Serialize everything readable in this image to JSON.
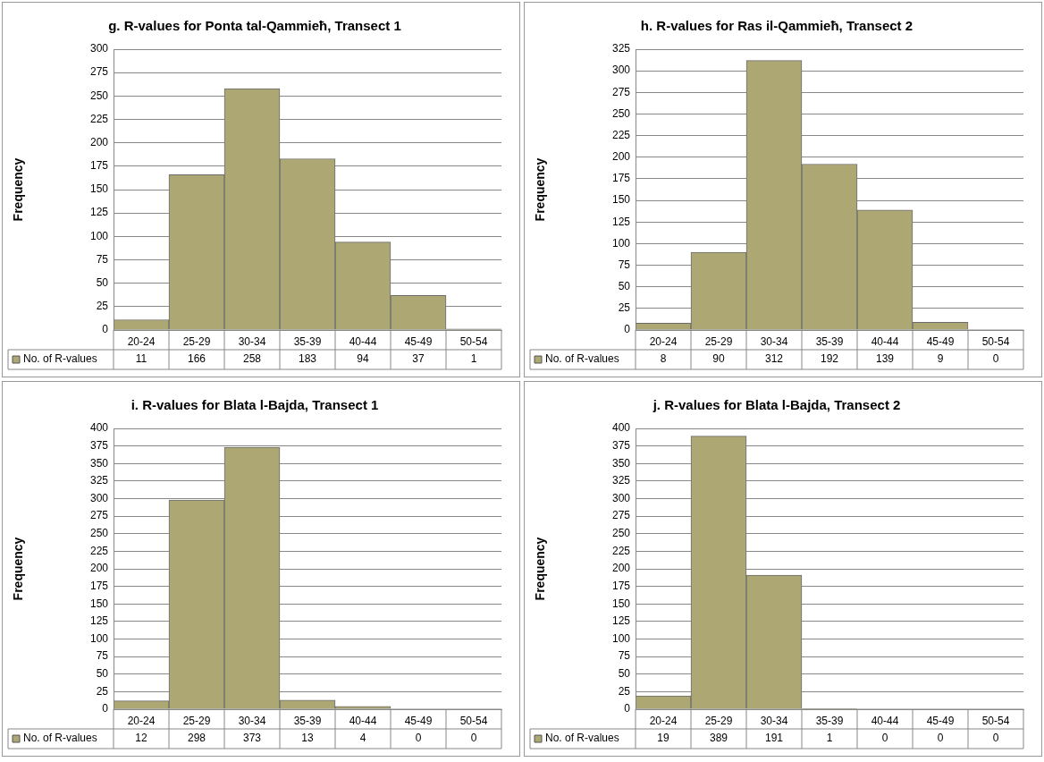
{
  "chart_data": [
    {
      "type": "bar",
      "title": "g. R-values for Ponta tal-Qammieħ, Transect 1",
      "ylabel": "Frequency",
      "categories": [
        "20-24",
        "25-29",
        "30-34",
        "35-39",
        "40-44",
        "45-49",
        "50-54"
      ],
      "series": [
        {
          "name": "No. of R-values",
          "color": "#ada774",
          "values": [
            11,
            166,
            258,
            183,
            94,
            37,
            1
          ]
        }
      ],
      "ylim": [
        0,
        300
      ],
      "yticks": [
        0,
        25,
        50,
        75,
        100,
        125,
        150,
        175,
        200,
        225,
        250,
        275,
        300
      ],
      "grid": "y",
      "data_labels": true,
      "legend": "bottom"
    },
    {
      "type": "bar",
      "title": "h. R-values for Ras il-Qammieħ, Transect 2",
      "ylabel": "Frequency",
      "categories": [
        "20-24",
        "25-29",
        "30-34",
        "35-39",
        "40-44",
        "45-49",
        "50-54"
      ],
      "series": [
        {
          "name": "No. of R-values",
          "color": "#ada774",
          "values": [
            8,
            90,
            312,
            192,
            139,
            9,
            0
          ]
        }
      ],
      "ylim": [
        0,
        325
      ],
      "yticks": [
        0,
        25,
        50,
        75,
        100,
        125,
        150,
        175,
        200,
        225,
        250,
        275,
        300,
        325
      ],
      "grid": "y",
      "data_labels": true,
      "legend": "bottom"
    },
    {
      "type": "bar",
      "title": "i. R-values for Blata l-Bajda, Transect 1",
      "ylabel": "Frequency",
      "categories": [
        "20-24",
        "25-29",
        "30-34",
        "35-39",
        "40-44",
        "45-49",
        "50-54"
      ],
      "series": [
        {
          "name": "No. of R-values",
          "color": "#ada774",
          "values": [
            12,
            298,
            373,
            13,
            4,
            0,
            0
          ]
        }
      ],
      "ylim": [
        0,
        400
      ],
      "yticks": [
        0,
        25,
        50,
        75,
        100,
        125,
        150,
        175,
        200,
        225,
        250,
        275,
        300,
        325,
        350,
        375,
        400
      ],
      "grid": "y",
      "data_labels": true,
      "legend": "bottom"
    },
    {
      "type": "bar",
      "title": "j. R-values for Blata l-Bajda, Transect 2",
      "ylabel": "Frequency",
      "categories": [
        "20-24",
        "25-29",
        "30-34",
        "35-39",
        "40-44",
        "45-49",
        "50-54"
      ],
      "series": [
        {
          "name": "No. of R-values",
          "color": "#ada774",
          "values": [
            19,
            389,
            191,
            1,
            0,
            0,
            0
          ]
        }
      ],
      "ylim": [
        0,
        400
      ],
      "yticks": [
        0,
        25,
        50,
        75,
        100,
        125,
        150,
        175,
        200,
        225,
        250,
        275,
        300,
        325,
        350,
        375,
        400
      ],
      "grid": "y",
      "data_labels": true,
      "legend": "bottom"
    }
  ]
}
